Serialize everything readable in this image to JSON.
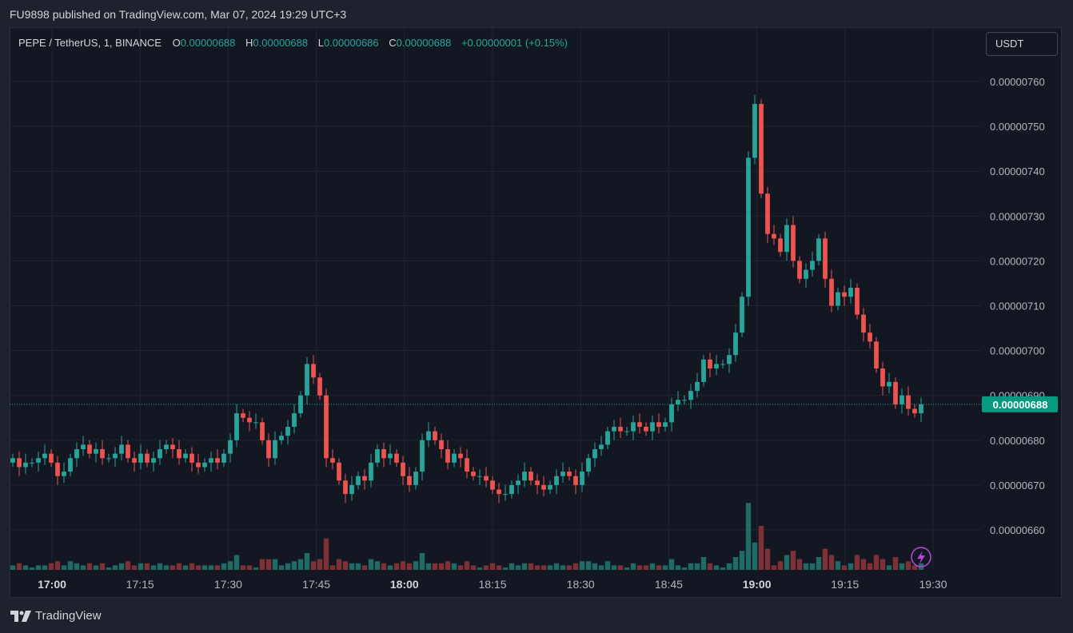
{
  "header": {
    "text": "FU9898 published on TradingView.com, Mar 07, 2024 19:29 UTC+3"
  },
  "legend": {
    "symbol": "PEPE / TetherUS, 1, BINANCE",
    "o_label": "O",
    "o_value": "0.00000688",
    "h_label": "H",
    "h_value": "0.00000688",
    "l_label": "L",
    "l_value": "0.00000686",
    "c_label": "C",
    "c_value": "0.00000688",
    "change": "+0.00000001 (+0.15%)"
  },
  "currency_button": {
    "label": "USDT"
  },
  "footer": {
    "brand": "TradingView"
  },
  "colors": {
    "up": "#26a69a",
    "down": "#ef5350",
    "up_volume": "#1f6b66",
    "down_volume": "#7f3136",
    "grid": "#232632",
    "axis_text": "#b2b5be",
    "price_tag": "#089981"
  },
  "chart_data": {
    "type": "candlestick",
    "grid": true,
    "y_ticks": [
      "0.00000760",
      "0.00000750",
      "0.00000740",
      "0.00000730",
      "0.00000720",
      "0.00000710",
      "0.00000700",
      "0.00000690",
      "0.00000680",
      "0.00000670",
      "0.00000660"
    ],
    "ylim": [
      6.5e-06,
      7.7e-06
    ],
    "x_ticks": [
      {
        "label": "17:00",
        "bold": true
      },
      {
        "label": "17:15",
        "bold": false
      },
      {
        "label": "17:30",
        "bold": false
      },
      {
        "label": "17:45",
        "bold": false
      },
      {
        "label": "18:00",
        "bold": true
      },
      {
        "label": "18:15",
        "bold": false
      },
      {
        "label": "18:30",
        "bold": false
      },
      {
        "label": "18:45",
        "bold": false
      },
      {
        "label": "19:00",
        "bold": true
      },
      {
        "label": "19:15",
        "bold": false
      },
      {
        "label": "19:30",
        "bold": false
      }
    ],
    "last_price": {
      "label": "0.00000688",
      "value": 6.88e-06
    },
    "close_series": [
      6.76,
      6.74,
      6.75,
      6.75,
      6.76,
      6.77,
      6.75,
      6.72,
      6.73,
      6.76,
      6.78,
      6.79,
      6.77,
      6.78,
      6.76,
      6.76,
      6.77,
      6.79,
      6.76,
      6.75,
      6.77,
      6.75,
      6.76,
      6.78,
      6.79,
      6.78,
      6.76,
      6.77,
      6.75,
      6.74,
      6.75,
      6.76,
      6.75,
      6.77,
      6.8,
      6.86,
      6.85,
      6.84,
      6.84,
      6.8,
      6.76,
      6.8,
      6.81,
      6.83,
      6.86,
      6.9,
      6.97,
      6.94,
      6.9,
      6.76,
      6.75,
      6.71,
      6.68,
      6.7,
      6.72,
      6.71,
      6.75,
      6.78,
      6.76,
      6.77,
      6.75,
      6.72,
      6.7,
      6.73,
      6.8,
      6.82,
      6.8,
      6.78,
      6.75,
      6.77,
      6.76,
      6.73,
      6.72,
      6.72,
      6.71,
      6.69,
      6.68,
      6.68,
      6.7,
      6.71,
      6.73,
      6.71,
      6.7,
      6.69,
      6.7,
      6.72,
      6.73,
      6.72,
      6.7,
      6.73,
      6.76,
      6.78,
      6.79,
      6.82,
      6.83,
      6.82,
      6.82,
      6.84,
      6.83,
      6.82,
      6.84,
      6.83,
      6.84,
      6.88,
      6.89,
      6.89,
      6.91,
      6.93,
      6.98,
      6.96,
      6.97,
      6.97,
      6.99,
      7.04,
      7.12,
      7.43,
      7.55,
      7.35,
      7.26,
      7.25,
      7.22,
      7.28,
      7.2,
      7.16,
      7.18,
      7.2,
      7.25,
      7.16,
      7.1,
      7.13,
      7.12,
      7.14,
      7.08,
      7.04,
      7.02,
      6.96,
      6.92,
      6.93,
      6.88,
      6.9,
      6.87,
      6.86,
      6.88
    ]
  }
}
